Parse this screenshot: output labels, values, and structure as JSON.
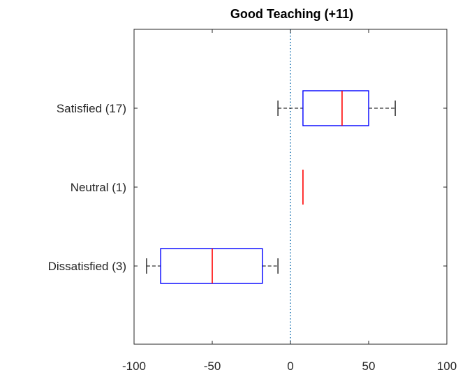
{
  "chart_data": {
    "type": "boxplot",
    "orientation": "horizontal",
    "title": "Good Teaching (+11)",
    "xlabel": "",
    "ylabel": "",
    "xlim": [
      -100,
      100
    ],
    "xticks": [
      -100,
      -50,
      0,
      50,
      100
    ],
    "xtick_labels": [
      "-100",
      "-50",
      "0",
      "50",
      "100"
    ],
    "reference_line": {
      "x": 0,
      "style": "dotted",
      "color": "#1f77b4"
    },
    "categories": [
      "Satisfied (17)",
      "Neutral (1)",
      "Dissatisfied (3)"
    ],
    "boxes": [
      {
        "label": "Satisfied (17)",
        "whisker_low": -8,
        "q1": 8,
        "median": 33,
        "q3": 50,
        "whisker_high": 67
      },
      {
        "label": "Neutral (1)",
        "whisker_low": 8,
        "q1": 8,
        "median": 8,
        "q3": 8,
        "whisker_high": 8
      },
      {
        "label": "Dissatisfied (3)",
        "whisker_low": -92,
        "q1": -83,
        "median": -50,
        "q3": -18,
        "whisker_high": -8
      }
    ],
    "colors": {
      "box": "#0000ff",
      "median": "#ff0000",
      "whisker": "#000000",
      "reference": "#1f77b4"
    },
    "grid": false,
    "legend": "none"
  }
}
